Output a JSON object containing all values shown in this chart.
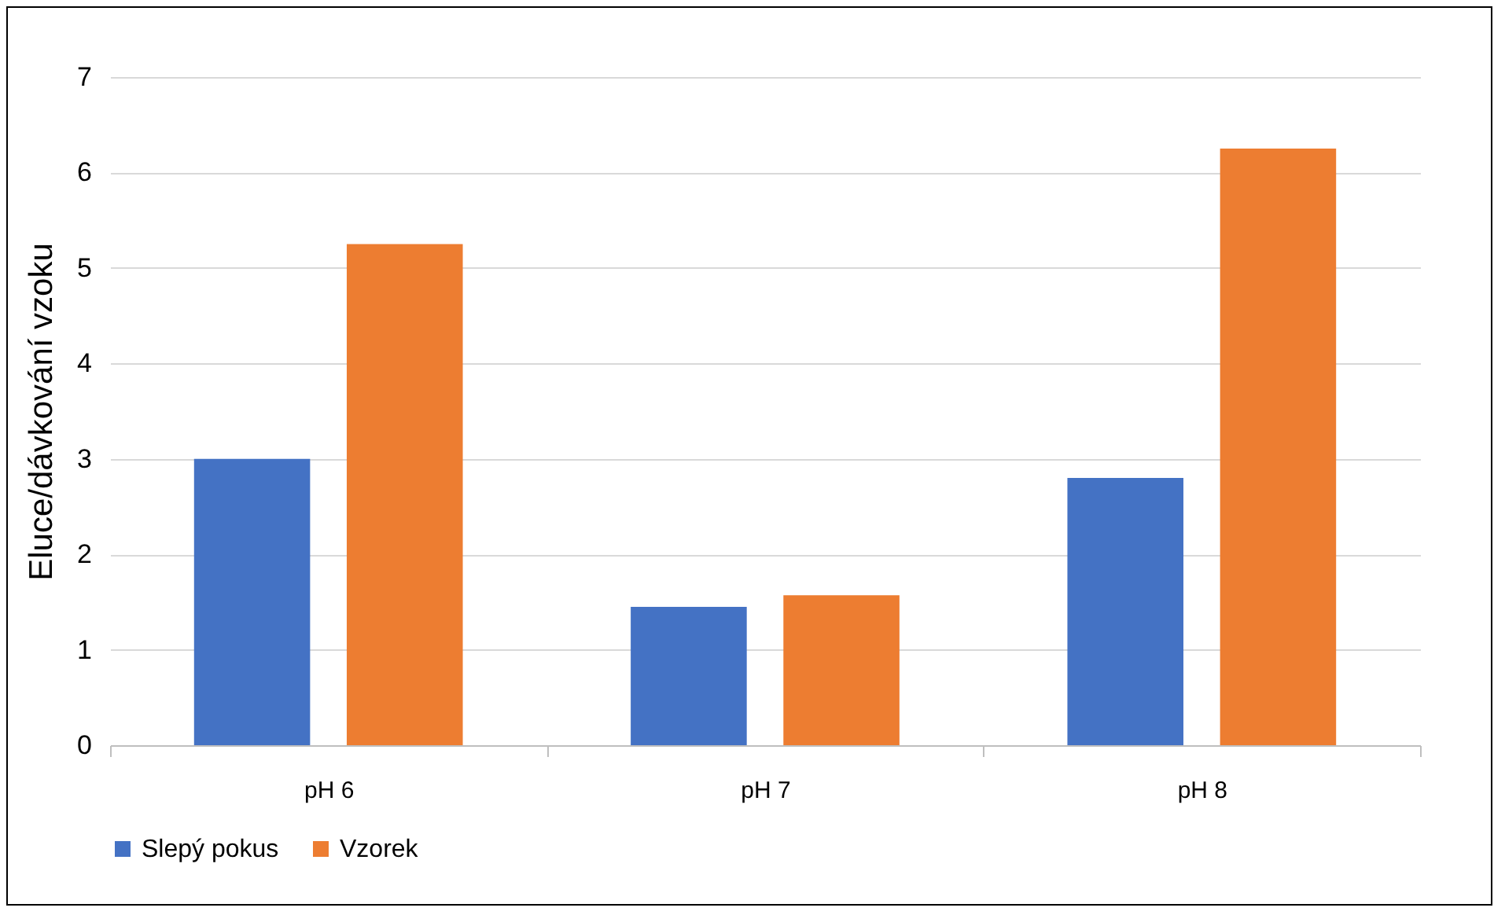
{
  "chart_data": {
    "type": "bar",
    "ylabel": "Eluce/dávkování vzoku",
    "categories": [
      "pH 6",
      "pH 7",
      "pH 8"
    ],
    "series": [
      {
        "name": "Slepý pokus",
        "color": "#4472c4",
        "values": [
          3.0,
          1.45,
          2.8
        ]
      },
      {
        "name": "Vzorek",
        "color": "#ed7d31",
        "values": [
          5.25,
          1.57,
          6.25
        ]
      }
    ],
    "ylim": [
      0,
      7
    ],
    "yticks": [
      0,
      1,
      2,
      3,
      4,
      5,
      6,
      7
    ],
    "grid": "y",
    "legend": "bottom"
  }
}
